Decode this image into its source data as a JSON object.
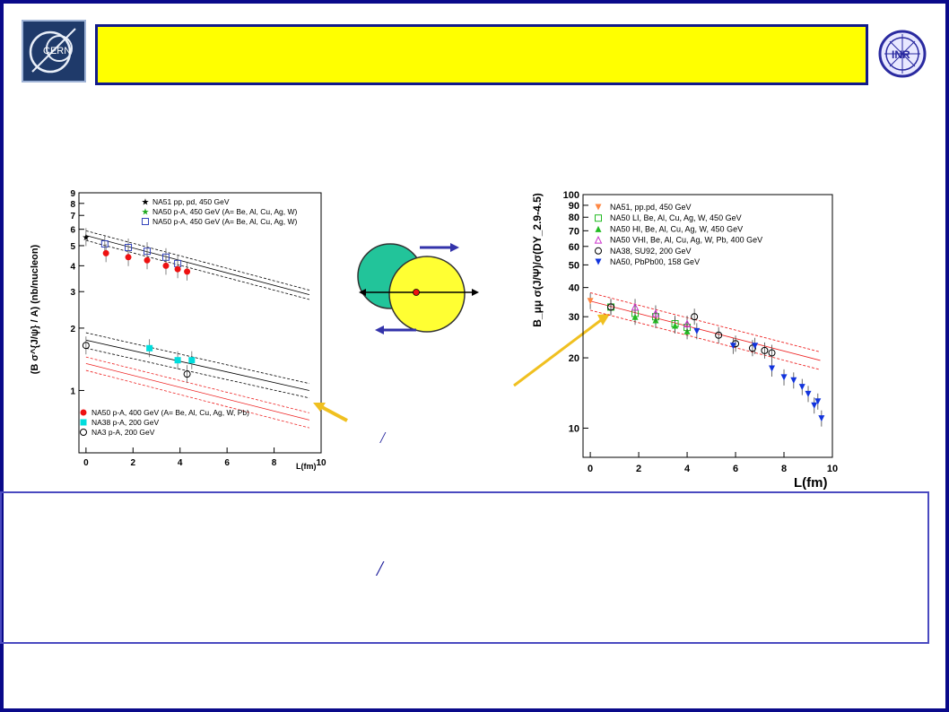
{
  "slash_glyph": "/",
  "logos": {
    "cern_text": "CERN",
    "inr_text": "INR"
  },
  "chart_data": [
    {
      "type": "scatter",
      "ylabel": "(B σ^{J/ψ} / A) (nb/nucleon)",
      "xlabel": "L(fm)",
      "xlim": [
        -0.3,
        10
      ],
      "ylim": [
        0.5,
        9
      ],
      "yscale": "log",
      "x_ticks": [
        "0",
        "2",
        "4",
        "6",
        "8",
        "10"
      ],
      "y_ticks": [
        "1",
        "2",
        "3",
        "4",
        "5",
        "6",
        "7",
        "8",
        "9"
      ],
      "legend_top": [
        {
          "marker": "★",
          "color": "#000000",
          "label": "NA51 pp, pd, 450 GeV"
        },
        {
          "marker": "★",
          "color": "#22aa22",
          "label": "NA50 p-A, 450 GeV (A= Be, Al, Cu, Ag, W)"
        },
        {
          "marker": "□",
          "color": "#3344bb",
          "label": "NA50 p-A, 450 GeV (A= Be, Al, Cu, Ag, W)"
        }
      ],
      "legend_bottom": [
        {
          "marker": "●",
          "color": "#ee1111",
          "label": "NA50 p-A, 400 GeV (A= Be, Al, Cu, Ag, W, Pb)"
        },
        {
          "marker": "■",
          "color": "#00dddd",
          "label": "NA38 p-A, 200 GeV"
        },
        {
          "marker": "○",
          "color": "#000000",
          "label": "NA3 p-A, 200 GeV"
        }
      ],
      "series": [
        {
          "name": "NA51 pp, pd, 450 GeV",
          "color": "#000000",
          "points": [
            [
              0,
              5.5
            ]
          ]
        },
        {
          "name": "NA50 p-A, 450 GeV (A= Be, Al, Cu, Ag, W)",
          "color": "#3344bb",
          "points": [
            [
              0.8,
              5.1
            ],
            [
              1.8,
              4.9
            ],
            [
              2.6,
              4.7
            ],
            [
              3.4,
              4.4
            ],
            [
              3.9,
              4.1
            ]
          ]
        },
        {
          "name": "NA50 p-A, 400 GeV (A= Be, Al, Cu, Ag, W, Pb)",
          "color": "#ee1111",
          "points": [
            [
              0.85,
              4.6
            ],
            [
              1.8,
              4.4
            ],
            [
              2.6,
              4.25
            ],
            [
              3.4,
              4.0
            ],
            [
              3.9,
              3.85
            ],
            [
              4.3,
              3.75
            ]
          ]
        },
        {
          "name": "NA38 p-A, 200 GeV",
          "color": "#00dddd",
          "points": [
            [
              2.7,
              1.6
            ],
            [
              3.9,
              1.4
            ],
            [
              4.5,
              1.4
            ]
          ]
        },
        {
          "name": "NA3 p-A, 200 GeV",
          "color": "#000000",
          "points": [
            [
              0,
              1.65
            ],
            [
              4.3,
              1.2
            ]
          ]
        }
      ]
    },
    {
      "type": "scatter",
      "ylabel": "B_μμ σ(J/Ψ)/σ(DY_2.9-4.5)",
      "xlabel": "L(fm)",
      "xlim": [
        -0.3,
        10
      ],
      "ylim": [
        7.5,
        100
      ],
      "yscale": "log",
      "x_ticks": [
        "0",
        "2",
        "4",
        "6",
        "8",
        "10"
      ],
      "y_ticks": [
        "10",
        "20",
        "30",
        "40",
        "50",
        "60",
        "70",
        "80",
        "90",
        "100"
      ],
      "legend": [
        {
          "marker": "▼",
          "color": "#ff8844",
          "label": "NA51, pp.pd, 450 GeV"
        },
        {
          "marker": "□",
          "color": "#22bb22",
          "label": "NA50 LI, Be, Al, Cu, Ag, W, 450 GeV"
        },
        {
          "marker": "▲",
          "color": "#22bb22",
          "label": "NA50 HI, Be, Al, Cu, Ag, W, 450 GeV"
        },
        {
          "marker": "△",
          "color": "#cc33cc",
          "label": "NA50 VHI, Be, Al, Cu, Ag, W, Pb, 400 GeV"
        },
        {
          "marker": "○",
          "color": "#000000",
          "label": "NA38, SU92, 200 GeV"
        },
        {
          "marker": "▼",
          "color": "#1133dd",
          "label": "NA50, PbPb00, 158 GeV"
        }
      ],
      "series": [
        {
          "name": "NA51, pp.pd, 450 GeV",
          "color": "#ff8844",
          "points": [
            [
              0,
              35
            ]
          ]
        },
        {
          "name": "NA50 LI, Be, Al, Cu, Ag, W, 450 GeV",
          "color": "#22bb22",
          "points": [
            [
              0.85,
              33
            ],
            [
              1.85,
              31
            ],
            [
              2.7,
              30
            ],
            [
              3.5,
              28
            ],
            [
              4.0,
              27
            ]
          ]
        },
        {
          "name": "NA50 HI, Be, Al, Cu, Ag, W, 450 GeV",
          "color": "#22bb22",
          "points": [
            [
              1.85,
              30
            ],
            [
              2.7,
              29
            ],
            [
              3.5,
              27.5
            ],
            [
              4.0,
              26
            ]
          ]
        },
        {
          "name": "NA50 VHI, Be, Al, Cu, Ag, W, Pb, 400 GeV",
          "color": "#cc33cc",
          "points": [
            [
              1.85,
              33
            ],
            [
              2.7,
              31
            ],
            [
              4.0,
              28
            ]
          ]
        },
        {
          "name": "NA38, SU92, 200 GeV",
          "color": "#000000",
          "points": [
            [
              0.85,
              33
            ],
            [
              4.3,
              30
            ],
            [
              5.3,
              25
            ],
            [
              6.0,
              23
            ],
            [
              6.7,
              22
            ],
            [
              7.2,
              21.5
            ],
            [
              7.5,
              21
            ]
          ]
        },
        {
          "name": "NA50, PbPb00, 158 GeV",
          "color": "#1133dd",
          "points": [
            [
              4.4,
              26
            ],
            [
              5.9,
              22.5
            ],
            [
              6.8,
              22.5
            ],
            [
              7.5,
              18
            ],
            [
              8.0,
              16.5
            ],
            [
              8.4,
              16
            ],
            [
              8.75,
              15
            ],
            [
              9.0,
              14
            ],
            [
              9.25,
              12.5
            ],
            [
              9.4,
              13
            ],
            [
              9.55,
              11
            ]
          ]
        }
      ]
    }
  ]
}
